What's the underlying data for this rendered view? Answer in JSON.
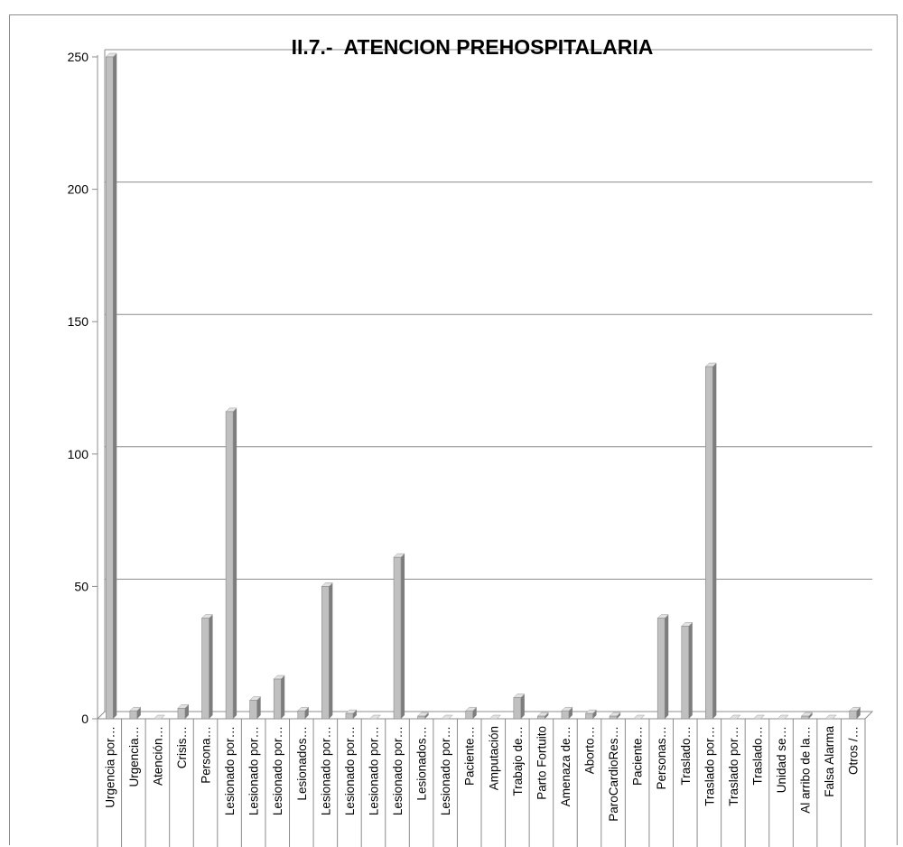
{
  "chart_data": {
    "type": "bar",
    "title": "II.7.-  ATENCION PREHOSPITALARIA",
    "xlabel": "",
    "ylabel": "",
    "ylim": [
      0,
      250
    ],
    "yticks": [
      "0",
      "50",
      "100",
      "150",
      "200",
      "250"
    ],
    "grid": true,
    "legend": "none",
    "style": "3d-column",
    "colors": {
      "bar_front": "#c0c0c0",
      "bar_side": "#7d7d7d",
      "bar_top": "#e2e2e2",
      "grid": "#8c8c8c"
    },
    "categories": [
      "Urgencia por…",
      "Urgencia…",
      "Atención…",
      "Crisis…",
      "Persona…",
      "Lesionado por…",
      "Lesionado por…",
      "Lesionado por…",
      "Lesionados…",
      "Lesionado por…",
      "Lesionado por…",
      "Lesionado por…",
      "Lesionado por…",
      "Lesionados…",
      "Lesionado por…",
      "Paciente…",
      "Amputación",
      "Trabajo de…",
      "Parto Fortuito",
      "Amenaza de…",
      "Aborto…",
      "ParoCardioRes…",
      "Paciente…",
      "Personas…",
      "Traslado…",
      "Traslado por…",
      "Traslado por…",
      "Traslado…",
      "Unidad se…",
      "Al arribo de la…",
      "Falsa Alarma",
      "Otros /…"
    ],
    "values": [
      250,
      3,
      0,
      4,
      38,
      116,
      7,
      15,
      3,
      50,
      2,
      0,
      61,
      1,
      0,
      3,
      0,
      8,
      1,
      3,
      2,
      1,
      0,
      38,
      35,
      133,
      0,
      0,
      0,
      1,
      0,
      3
    ]
  }
}
